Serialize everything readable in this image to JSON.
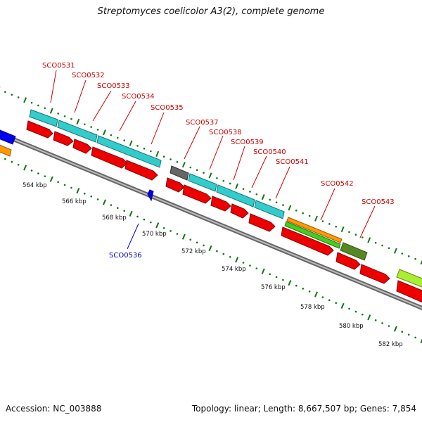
{
  "header": {
    "title": "Streptomyces coelicolor A3(2), complete genome"
  },
  "footer": {
    "accession": "Accession: NC_003888",
    "summary": "Topology: linear; Length: 8,667,507 bp; Genes: 7,854"
  },
  "colors": {
    "forward_gene_label": "#cc0000",
    "reverse_gene_label": "#0000cc",
    "cds_red": "#ee0000",
    "cds_cyan": "#33cccc",
    "cds_orange": "#ff9900",
    "cds_green": "#44cc22",
    "cds_olive": "#558822",
    "cds_gray": "#666666",
    "cds_blue": "#0000ee",
    "cds_lime": "#aaee33",
    "backbone": "#888888",
    "ticks": "#117711"
  },
  "scale_labels": [
    "564 kbp",
    "566 kbp",
    "568 kbp",
    "570 kbp",
    "572 kbp",
    "574 kbp",
    "576 kbp",
    "578 kbp",
    "580 kbp",
    "582 kbp"
  ],
  "gene_labels": [
    {
      "name": "SCO0531",
      "strand": "forward"
    },
    {
      "name": "SCO0532",
      "strand": "forward"
    },
    {
      "name": "SCO0533",
      "strand": "forward"
    },
    {
      "name": "SCO0534",
      "strand": "forward"
    },
    {
      "name": "SCO0535",
      "strand": "forward"
    },
    {
      "name": "SCO0536",
      "strand": "reverse"
    },
    {
      "name": "SCO0537",
      "strand": "forward"
    },
    {
      "name": "SCO0538",
      "strand": "forward"
    },
    {
      "name": "SCO0539",
      "strand": "forward"
    },
    {
      "name": "SCO0540",
      "strand": "forward"
    },
    {
      "name": "SCO0541",
      "strand": "forward"
    },
    {
      "name": "SCO0542",
      "strand": "forward"
    },
    {
      "name": "SCO0543",
      "strand": "forward"
    }
  ]
}
